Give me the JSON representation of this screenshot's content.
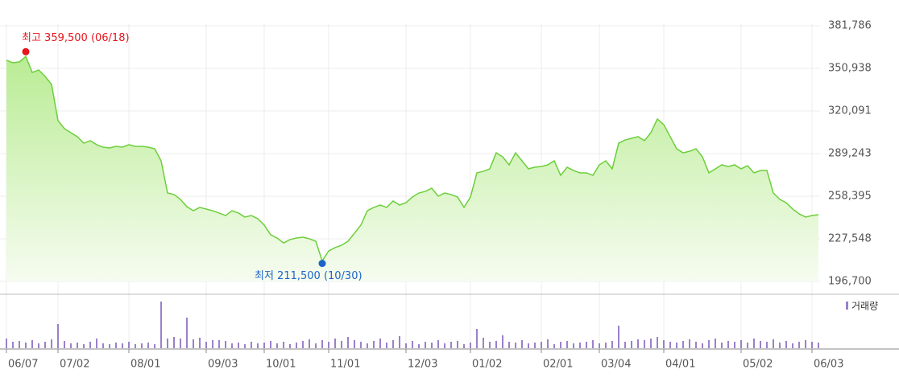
{
  "chart_data": {
    "type": "line",
    "series": [
      {
        "name": "price",
        "color": "#6ccf3a",
        "values": [
          356800,
          355000,
          355600,
          359500,
          348000,
          349800,
          345100,
          339300,
          313100,
          307300,
          304400,
          301500,
          296800,
          298600,
          295700,
          293900,
          293300,
          294500,
          293900,
          295700,
          294500,
          294500,
          293900,
          292700,
          284000,
          260700,
          259600,
          256100,
          250800,
          247900,
          250300,
          249100,
          247900,
          246200,
          244400,
          247900,
          246200,
          243300,
          244400,
          242100,
          237500,
          230500,
          228100,
          224600,
          227000,
          228100,
          228700,
          227600,
          225800,
          211500,
          218800,
          221200,
          222900,
          225800,
          231600,
          237500,
          247900,
          250300,
          252000,
          250300,
          254900,
          252000,
          253700,
          257800,
          260700,
          261900,
          264200,
          258400,
          260700,
          259600,
          257800,
          250300,
          257800,
          275300,
          276400,
          278200,
          289800,
          286900,
          281100,
          289800,
          284000,
          278200,
          279400,
          279900,
          281100,
          284000,
          273500,
          279400,
          277000,
          275300,
          275300,
          273500,
          281100,
          284000,
          278200,
          296800,
          299100,
          300300,
          301500,
          298600,
          304400,
          314300,
          310200,
          301500,
          292700,
          289800,
          290900,
          292700,
          286900,
          275300,
          278200,
          281100,
          279900,
          281100,
          278200,
          280500,
          275300,
          277000,
          277000,
          260700,
          256100,
          253700,
          249100,
          245600,
          243300,
          244400,
          245000
        ]
      }
    ],
    "volume": {
      "name": "거래량",
      "color": "#9b80c9",
      "ylim": [
        0,
        60
      ],
      "values": [
        12,
        8,
        9,
        7,
        10,
        6,
        8,
        11,
        30,
        9,
        6,
        7,
        5,
        8,
        12,
        6,
        5,
        7,
        6,
        8,
        5,
        6,
        7,
        5,
        58,
        12,
        14,
        12,
        38,
        11,
        13,
        8,
        10,
        10,
        9,
        6,
        7,
        5,
        8,
        6,
        7,
        9,
        6,
        8,
        5,
        7,
        9,
        11,
        6,
        10,
        8,
        12,
        9,
        14,
        10,
        8,
        6,
        9,
        12,
        7,
        10,
        15,
        6,
        9,
        5,
        8,
        7,
        10,
        6,
        8,
        9,
        5,
        7,
        24,
        13,
        8,
        9,
        16,
        8,
        7,
        10,
        6,
        7,
        8,
        11,
        5,
        8,
        9,
        6,
        7,
        8,
        10,
        6,
        7,
        9,
        28,
        8,
        9,
        11,
        10,
        12,
        14,
        10,
        8,
        7,
        9,
        11,
        8,
        6,
        10,
        12,
        7,
        9,
        8,
        10,
        7,
        12,
        9,
        8,
        11,
        7,
        9,
        6,
        8,
        10,
        8,
        7
      ]
    },
    "xticks": [
      {
        "value": 0,
        "label": "06/07"
      },
      {
        "value": 8,
        "label": "07/02"
      },
      {
        "value": 19,
        "label": "08/01"
      },
      {
        "value": 31,
        "label": "09/03"
      },
      {
        "value": 40,
        "label": "10/01"
      },
      {
        "value": 50,
        "label": "11/01"
      },
      {
        "value": 62,
        "label": "12/03"
      },
      {
        "value": 72,
        "label": "01/02"
      },
      {
        "value": 83,
        "label": "02/01"
      },
      {
        "value": 92,
        "label": "03/04"
      },
      {
        "value": 102,
        "label": "04/01"
      },
      {
        "value": 114,
        "label": "05/02"
      },
      {
        "value": 125,
        "label": "06/03"
      }
    ],
    "ylim": [
      196700,
      381786
    ],
    "yticks": [
      {
        "value": 381786,
        "label": "381,786"
      },
      {
        "value": 350938,
        "label": "350,938"
      },
      {
        "value": 320091,
        "label": "320,091"
      },
      {
        "value": 289243,
        "label": "289,243"
      },
      {
        "value": 258395,
        "label": "258,395"
      },
      {
        "value": 227548,
        "label": "227,548"
      },
      {
        "value": 196700,
        "label": "196,700"
      }
    ],
    "annotations": [
      {
        "label": "최고 359,500 (06/18)",
        "value": 359500,
        "index": 3,
        "color": "#e8141b"
      },
      {
        "label": "최저 211,500 (10/30)",
        "value": 211500,
        "index": 49,
        "color": "#1d64c8"
      }
    ],
    "grid": true
  }
}
